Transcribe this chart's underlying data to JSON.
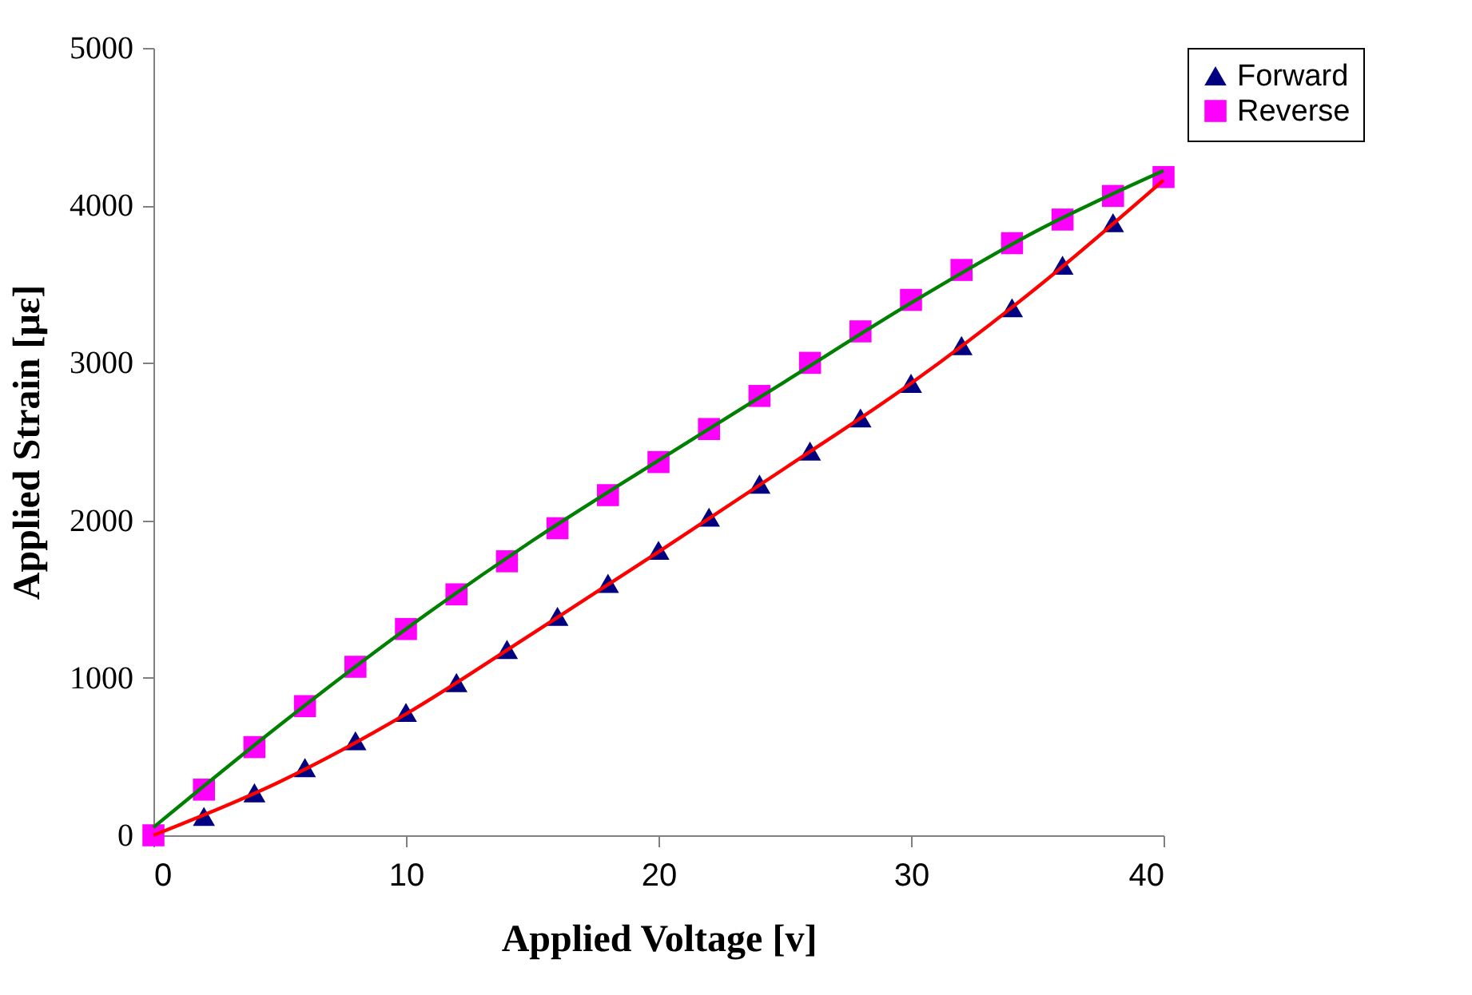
{
  "chart_data": {
    "type": "scatter",
    "xlabel": "Applied Voltage [v]",
    "ylabel": "Applied Strain [με]",
    "xlim": [
      0,
      40
    ],
    "ylim": [
      0,
      5000
    ],
    "xticks": [
      0,
      10,
      20,
      30,
      40
    ],
    "yticks": [
      0,
      1000,
      2000,
      3000,
      4000,
      5000
    ],
    "grid": false,
    "legend": "right",
    "x": [
      0,
      2,
      4,
      6,
      8,
      10,
      12,
      14,
      16,
      18,
      20,
      22,
      24,
      26,
      28,
      30,
      32,
      34,
      36,
      38,
      40
    ],
    "series": [
      {
        "name": "Forward",
        "marker": "triangle",
        "color": "#000080",
        "values": [
          null,
          120,
          270,
          430,
          600,
          780,
          970,
          1180,
          1390,
          1600,
          1810,
          2020,
          2230,
          2440,
          2650,
          2870,
          3110,
          3350,
          3620,
          3890,
          null
        ]
      },
      {
        "name": "Reverse",
        "marker": "square",
        "color": "#ff00ff",
        "values": [
          0,
          290,
          560,
          820,
          1070,
          1310,
          1530,
          1740,
          1950,
          2160,
          2370,
          2580,
          2790,
          3000,
          3200,
          3400,
          3590,
          3760,
          3910,
          4060,
          4180
        ]
      },
      {
        "type": "line",
        "color": "#008000",
        "x": [
          0,
          5,
          10,
          15,
          20,
          25,
          30,
          35,
          40
        ],
        "values": [
          50,
          700,
          1310,
          1870,
          2380,
          2880,
          3380,
          3840,
          4220
        ]
      },
      {
        "type": "line",
        "color": "#ff0000",
        "x": [
          0,
          5,
          10,
          15,
          20,
          25,
          30,
          35,
          40
        ],
        "values": [
          0,
          340,
          770,
          1280,
          1800,
          2330,
          2870,
          3480,
          4160
        ]
      }
    ]
  }
}
